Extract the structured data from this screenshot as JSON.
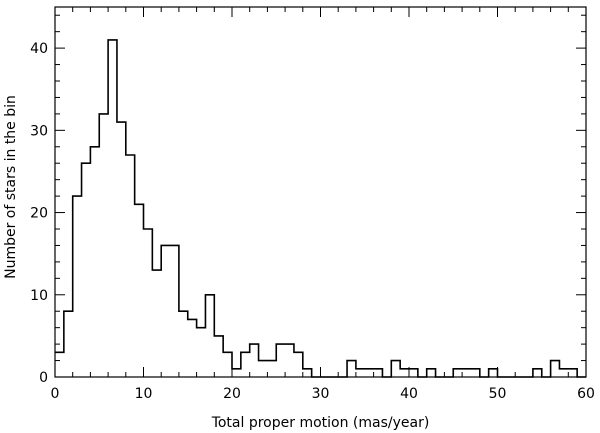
{
  "chart_data": {
    "type": "histogram",
    "xlabel": "Total proper motion (mas/year)",
    "ylabel": "Number of stars in the bin",
    "xlim": [
      0,
      60
    ],
    "ylim": [
      0,
      45
    ],
    "x_major_ticks": [
      0,
      10,
      20,
      30,
      40,
      50,
      60
    ],
    "y_major_ticks": [
      0,
      10,
      20,
      30,
      40
    ],
    "x_minor_step": 2,
    "y_minor_step": 2,
    "grid": false,
    "bin_width": 1,
    "bin_start": 0,
    "counts": [
      3,
      8,
      22,
      26,
      28,
      32,
      41,
      31,
      27,
      21,
      18,
      13,
      16,
      16,
      8,
      7,
      6,
      10,
      5,
      3,
      1,
      3,
      4,
      2,
      2,
      4,
      4,
      3,
      1,
      0,
      0,
      0,
      0,
      2,
      1,
      1,
      1,
      0,
      2,
      1,
      1,
      0,
      1,
      0,
      0,
      1,
      1,
      1,
      0,
      1,
      0,
      0,
      0,
      0,
      1,
      0,
      2,
      1,
      1,
      0
    ]
  }
}
